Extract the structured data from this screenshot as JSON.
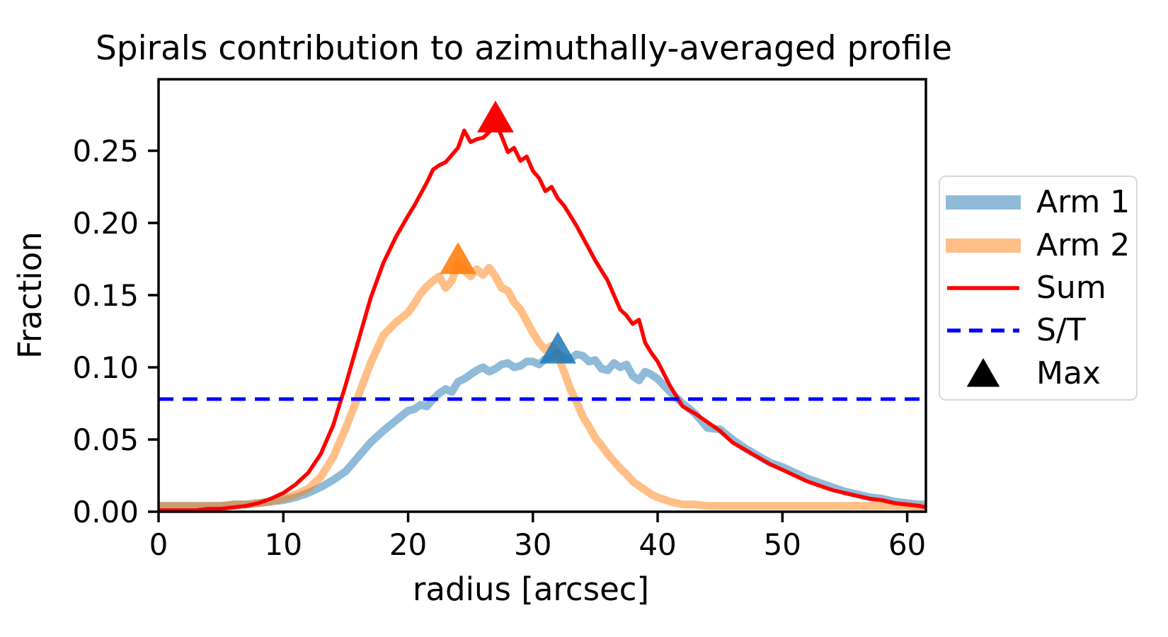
{
  "chart_data": {
    "type": "line",
    "title": "Spirals contribution to azimuthally-averaged profile",
    "xlabel": "radius [arcsec]",
    "ylabel": "Fraction",
    "xlim": [
      0,
      61.5
    ],
    "ylim": [
      0,
      0.2995
    ],
    "x_ticks": [
      {
        "value": 0,
        "label": "0"
      },
      {
        "value": 10,
        "label": "10"
      },
      {
        "value": 20,
        "label": "20"
      },
      {
        "value": 30,
        "label": "30"
      },
      {
        "value": 40,
        "label": "40"
      },
      {
        "value": 50,
        "label": "50"
      },
      {
        "value": 60,
        "label": "60"
      }
    ],
    "y_ticks": [
      {
        "value": 0.0,
        "label": "0.00"
      },
      {
        "value": 0.05,
        "label": "0.05"
      },
      {
        "value": 0.1,
        "label": "0.10"
      },
      {
        "value": 0.15,
        "label": "0.15"
      },
      {
        "value": 0.2,
        "label": "0.20"
      },
      {
        "value": 0.25,
        "label": "0.25"
      }
    ],
    "x": [
      0,
      1,
      2,
      3,
      4,
      5,
      6,
      7,
      8,
      9,
      10,
      11,
      12,
      13,
      14,
      15,
      16,
      17,
      18,
      19,
      20,
      20.5,
      21,
      21.5,
      22,
      22.5,
      23,
      23.5,
      24,
      24.5,
      25,
      25.5,
      26,
      26.5,
      27,
      27.5,
      28,
      28.5,
      29,
      29.5,
      30,
      30.5,
      31,
      31.5,
      32,
      32.5,
      33,
      33.5,
      34,
      34.5,
      35,
      35.5,
      36,
      36.5,
      37,
      37.5,
      38,
      38.5,
      39,
      39.5,
      40,
      41,
      42,
      43,
      44,
      45,
      46,
      47,
      48,
      49,
      50,
      51,
      52,
      53,
      54,
      55,
      56,
      57,
      58,
      59,
      60,
      61,
      61.5
    ],
    "series": [
      {
        "name": "Arm 1",
        "color": "#1f77b4",
        "opacity": 0.5,
        "width": 11,
        "values": [
          0.004,
          0.004,
          0.004,
          0.004,
          0.004,
          0.004,
          0.005,
          0.005,
          0.006,
          0.007,
          0.008,
          0.01,
          0.013,
          0.017,
          0.022,
          0.028,
          0.038,
          0.048,
          0.056,
          0.063,
          0.07,
          0.071,
          0.074,
          0.073,
          0.078,
          0.082,
          0.085,
          0.083,
          0.09,
          0.092,
          0.095,
          0.098,
          0.1,
          0.097,
          0.099,
          0.102,
          0.103,
          0.1,
          0.101,
          0.104,
          0.104,
          0.102,
          0.106,
          0.107,
          0.11,
          0.106,
          0.106,
          0.109,
          0.108,
          0.104,
          0.105,
          0.099,
          0.098,
          0.103,
          0.1,
          0.102,
          0.094,
          0.091,
          0.097,
          0.095,
          0.092,
          0.083,
          0.075,
          0.068,
          0.058,
          0.057,
          0.05,
          0.044,
          0.039,
          0.034,
          0.031,
          0.027,
          0.023,
          0.02,
          0.017,
          0.014,
          0.012,
          0.01,
          0.009,
          0.007,
          0.006,
          0.005,
          0.005
        ]
      },
      {
        "name": "Arm 2",
        "color": "#ff7f0e",
        "opacity": 0.5,
        "width": 11,
        "values": [
          0.004,
          0.004,
          0.004,
          0.004,
          0.004,
          0.004,
          0.005,
          0.005,
          0.006,
          0.007,
          0.009,
          0.012,
          0.016,
          0.024,
          0.038,
          0.058,
          0.08,
          0.103,
          0.122,
          0.131,
          0.138,
          0.144,
          0.151,
          0.156,
          0.16,
          0.163,
          0.155,
          0.16,
          0.172,
          0.167,
          0.163,
          0.168,
          0.164,
          0.169,
          0.163,
          0.155,
          0.153,
          0.145,
          0.14,
          0.132,
          0.124,
          0.117,
          0.112,
          0.115,
          0.108,
          0.097,
          0.085,
          0.076,
          0.066,
          0.059,
          0.051,
          0.046,
          0.04,
          0.035,
          0.03,
          0.026,
          0.021,
          0.018,
          0.015,
          0.012,
          0.01,
          0.007,
          0.005,
          0.005,
          0.004,
          0.004,
          0.004,
          0.004,
          0.004,
          0.004,
          0.004,
          0.004,
          0.004,
          0.004,
          0.004,
          0.004,
          0.004,
          0.004,
          0.004,
          0.004,
          0.004,
          0.003,
          0.003
        ]
      },
      {
        "name": "Sum",
        "color": "#ff0000",
        "opacity": 1,
        "width": 5.5,
        "values": [
          0.001,
          0.001,
          0.001,
          0.001,
          0.002,
          0.002,
          0.003,
          0.004,
          0.006,
          0.009,
          0.013,
          0.019,
          0.027,
          0.04,
          0.06,
          0.088,
          0.118,
          0.148,
          0.172,
          0.19,
          0.205,
          0.212,
          0.22,
          0.228,
          0.237,
          0.24,
          0.242,
          0.247,
          0.252,
          0.264,
          0.256,
          0.258,
          0.259,
          0.263,
          0.27,
          0.26,
          0.249,
          0.252,
          0.243,
          0.246,
          0.236,
          0.231,
          0.222,
          0.225,
          0.217,
          0.212,
          0.205,
          0.198,
          0.19,
          0.182,
          0.174,
          0.167,
          0.16,
          0.15,
          0.14,
          0.136,
          0.13,
          0.133,
          0.117,
          0.11,
          0.104,
          0.087,
          0.073,
          0.068,
          0.062,
          0.056,
          0.048,
          0.043,
          0.038,
          0.033,
          0.029,
          0.025,
          0.021,
          0.018,
          0.015,
          0.013,
          0.011,
          0.009,
          0.008,
          0.006,
          0.005,
          0.004,
          0.003
        ]
      }
    ],
    "hline": {
      "label": "S/T",
      "value": 0.078,
      "color": "#0000ff",
      "style": "dashed"
    },
    "max_markers": [
      {
        "series": "Sum",
        "x": 27,
        "y": 0.27,
        "color": "#ff0000",
        "opacity": 1.0
      },
      {
        "series": "Arm 2",
        "x": 24,
        "y": 0.172,
        "color": "#ff7f0e",
        "opacity": 0.9
      },
      {
        "series": "Arm 1",
        "x": 32,
        "y": 0.11,
        "color": "#1f77b4",
        "opacity": 0.85
      }
    ],
    "legend_position": "right-outside"
  },
  "legend": {
    "items": [
      {
        "label": "Arm 1",
        "type": "band",
        "color": "#1f77b4"
      },
      {
        "label": "Arm 2",
        "type": "band",
        "color": "#ff7f0e"
      },
      {
        "label": "Sum",
        "type": "line",
        "color": "#ff0000"
      },
      {
        "label": "S/T",
        "type": "dashed",
        "color": "#0000ff"
      },
      {
        "label": "Max",
        "type": "triangle",
        "color": "#000000"
      }
    ]
  }
}
